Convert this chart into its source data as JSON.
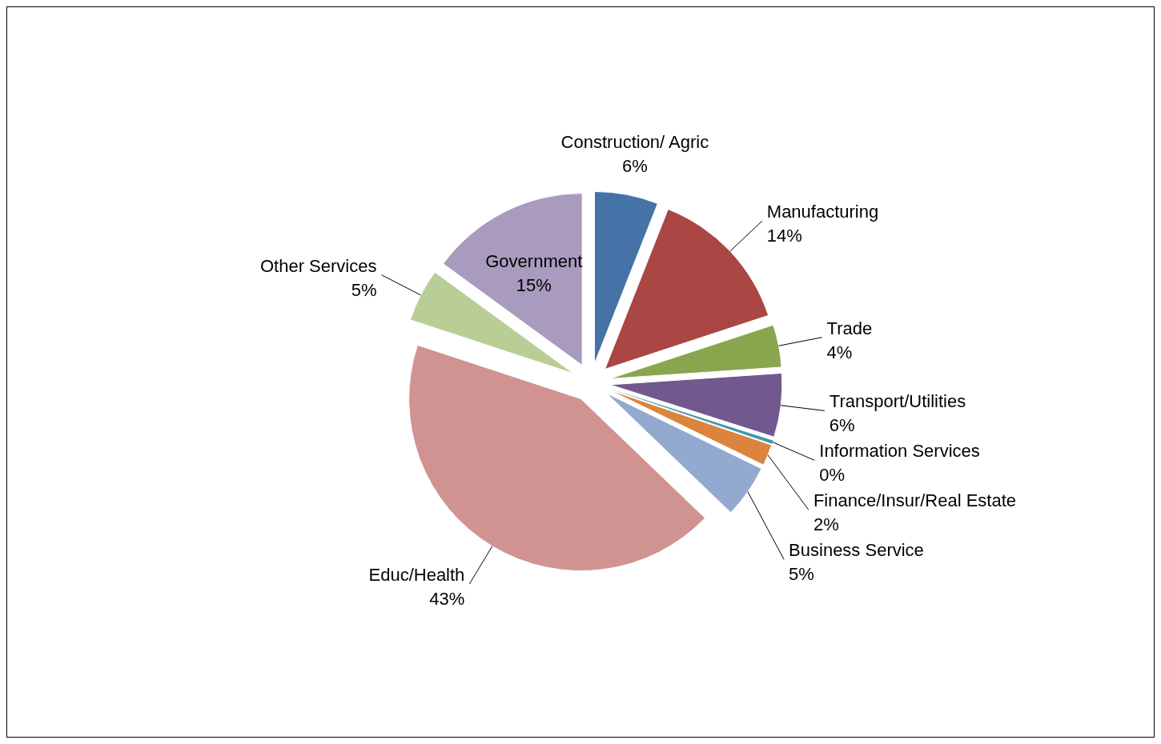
{
  "chart_data": {
    "type": "pie",
    "categories": [
      "Construction/ Agric",
      "Manufacturing",
      "Trade",
      "Transport/Utilities",
      "Information Services",
      "Finance/Insur/Real Estate",
      "Business Service",
      "Educ/Health",
      "Other Services",
      "Government"
    ],
    "values": [
      6,
      14,
      4,
      6,
      0.3,
      2,
      5,
      43,
      5,
      15
    ],
    "value_labels": [
      "6%",
      "14%",
      "4%",
      "6%",
      "0%",
      "2%",
      "5%",
      "43%",
      "5%",
      "15%"
    ],
    "colors": [
      "#4572a7",
      "#aa4643",
      "#89a54e",
      "#71588f",
      "#4198af",
      "#db843d",
      "#93a9cf",
      "#d19392",
      "#b9cd96",
      "#a99bbd"
    ]
  }
}
